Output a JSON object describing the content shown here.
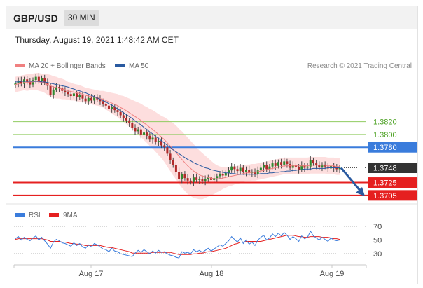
{
  "header": {
    "symbol": "GBP/USD",
    "timeframe": "30 MIN"
  },
  "datetime": "Thursday, August 19, 2021 1:48:42 AM CET",
  "chart_data": [
    {
      "type": "line",
      "chart": "price",
      "legend": [
        {
          "name": "MA 20 + Bollinger Bands",
          "color": "#f08080"
        },
        {
          "name": "MA 50",
          "color": "#2a5aa0"
        }
      ],
      "credit": "Research © 2021 Trading Central",
      "current_price": {
        "label": "1.3748",
        "value": 1.3748,
        "color": "#333333"
      },
      "levels": [
        {
          "label": "1.3820",
          "value": 1.382,
          "color": "#90cc60",
          "text_color": "#4aa020",
          "style": "thin"
        },
        {
          "label": "1.3800",
          "value": 1.38,
          "color": "#90cc60",
          "text_color": "#4aa020",
          "style": "thin"
        },
        {
          "label": "1.3780",
          "value": 1.378,
          "color": "#3a7cdc",
          "text_color": "#ffffff",
          "style": "tag"
        },
        {
          "label": "1.3725",
          "value": 1.3725,
          "color": "#e52020",
          "text_color": "#ffffff",
          "style": "tag"
        },
        {
          "label": "1.3705",
          "value": 1.3705,
          "color": "#e52020",
          "text_color": "#ffffff",
          "style": "tag"
        }
      ],
      "projection": {
        "from": 1.3748,
        "to": 1.3707,
        "color": "#2a5aa0"
      },
      "x_ticks": [
        "Aug 17",
        "Aug 18",
        "Aug 19"
      ],
      "candles_close": [
        1.388,
        1.3884,
        1.3879,
        1.3886,
        1.3882,
        1.3878,
        1.3885,
        1.389,
        1.3883,
        1.3888,
        1.3881,
        1.3876,
        1.3862,
        1.387,
        1.3874,
        1.3872,
        1.3868,
        1.3866,
        1.3863,
        1.386,
        1.3864,
        1.3858,
        1.3861,
        1.3856,
        1.3852,
        1.3857,
        1.3853,
        1.3858,
        1.3855,
        1.3852,
        1.3848,
        1.3845,
        1.384,
        1.3843,
        1.3838,
        1.3835,
        1.383,
        1.3826,
        1.3822,
        1.3818,
        1.381,
        1.3805,
        1.3808,
        1.38,
        1.3803,
        1.3798,
        1.3792,
        1.3795,
        1.3788,
        1.379,
        1.3783,
        1.378,
        1.377,
        1.376,
        1.3752,
        1.3742,
        1.373,
        1.3738,
        1.3732,
        1.3728,
        1.3726,
        1.3733,
        1.3729,
        1.3731,
        1.3727,
        1.373,
        1.3733,
        1.3729,
        1.3732,
        1.3735,
        1.3738,
        1.3736,
        1.374,
        1.3744,
        1.375,
        1.3746,
        1.3743,
        1.3748,
        1.3741,
        1.3745,
        1.374,
        1.3742,
        1.3738,
        1.3744,
        1.3748,
        1.3752,
        1.3746,
        1.375,
        1.3755,
        1.3751,
        1.3757,
        1.3753,
        1.3758,
        1.3754,
        1.3748,
        1.3752,
        1.3749,
        1.3745,
        1.3752,
        1.3748,
        1.375,
        1.376,
        1.3755,
        1.3752,
        1.3749,
        1.3753,
        1.375,
        1.3747,
        1.3751,
        1.3748,
        1.3746,
        1.3748
      ],
      "ma20": [
        1.3878,
        1.3879,
        1.388,
        1.3881,
        1.3881,
        1.3882,
        1.3882,
        1.3883,
        1.3882,
        1.3881,
        1.388,
        1.3878,
        1.3876,
        1.3874,
        1.3873,
        1.3872,
        1.3871,
        1.387,
        1.3868,
        1.3867,
        1.3866,
        1.3865,
        1.3864,
        1.3863,
        1.3861,
        1.386,
        1.3859,
        1.3858,
        1.3857,
        1.3856,
        1.3855,
        1.3853,
        1.3851,
        1.3849,
        1.3847,
        1.3845,
        1.3842,
        1.384,
        1.3837,
        1.3834,
        1.3831,
        1.3828,
        1.3825,
        1.3822,
        1.3818,
        1.3815,
        1.3811,
        1.3808,
        1.3804,
        1.38,
        1.3796,
        1.3792,
        1.3787,
        1.3782,
        1.3777,
        1.3772,
        1.3766,
        1.3761,
        1.3756,
        1.3751,
        1.3747,
        1.3743,
        1.374,
        1.3737,
        1.3735,
        1.3734,
        1.3733,
        1.3732,
        1.3731,
        1.3731,
        1.3731,
        1.3732,
        1.3733,
        1.3734,
        1.3735,
        1.3736,
        1.3737,
        1.3738,
        1.3739,
        1.374,
        1.374,
        1.3741,
        1.3741,
        1.3742,
        1.3743,
        1.3744,
        1.3745,
        1.3746,
        1.3747,
        1.3748,
        1.3749,
        1.375,
        1.3751,
        1.3751,
        1.3751,
        1.3751,
        1.3751,
        1.3751,
        1.3751,
        1.3751,
        1.3751,
        1.3752,
        1.3752,
        1.3752,
        1.3752,
        1.3752,
        1.3752,
        1.3751,
        1.3751,
        1.3751,
        1.375,
        1.375
      ],
      "ma50": [
        1.3882,
        1.3882,
        1.3883,
        1.3883,
        1.3883,
        1.3883,
        1.3883,
        1.3883,
        1.3883,
        1.3882,
        1.3882,
        1.3881,
        1.388,
        1.3879,
        1.3878,
        1.3877,
        1.3876,
        1.3875,
        1.3874,
        1.3872,
        1.3871,
        1.3869,
        1.3868,
        1.3866,
        1.3865,
        1.3863,
        1.3861,
        1.3859,
        1.3857,
        1.3855,
        1.3853,
        1.3851,
        1.3848,
        1.3846,
        1.3843,
        1.384,
        1.3837,
        1.3834,
        1.3831,
        1.3828,
        1.3825,
        1.3821,
        1.3818,
        1.3815,
        1.3811,
        1.3808,
        1.3804,
        1.3801,
        1.3797,
        1.3794,
        1.379,
        1.3787,
        1.3783,
        1.378,
        1.3776,
        1.3773,
        1.377,
        1.3767,
        1.3764,
        1.3761,
        1.3759,
        1.3756,
        1.3754,
        1.3752,
        1.375,
        1.3748,
        1.3747,
        1.3745,
        1.3744,
        1.3743,
        1.3742,
        1.3741,
        1.374,
        1.374,
        1.3739,
        1.3739,
        1.3738,
        1.3738,
        1.3738,
        1.3738,
        1.3738,
        1.3738,
        1.3738,
        1.3738,
        1.3739,
        1.3739,
        1.3739,
        1.374,
        1.374,
        1.3741,
        1.3741,
        1.3742,
        1.3742,
        1.3743,
        1.3743,
        1.3744,
        1.3744,
        1.3745,
        1.3745,
        1.3746,
        1.3746,
        1.3746,
        1.3747,
        1.3747,
        1.3747,
        1.3747,
        1.3747,
        1.3748,
        1.3748,
        1.3748,
        1.3748,
        1.3748
      ],
      "band_width": [
        0.0012,
        0.0012,
        0.0012,
        0.0012,
        0.0013,
        0.0013,
        0.0013,
        0.0013,
        0.0014,
        0.0014,
        0.0015,
        0.0016,
        0.0017,
        0.0017,
        0.0017,
        0.0016,
        0.0016,
        0.0015,
        0.0014,
        0.0014,
        0.0013,
        0.0013,
        0.0013,
        0.0012,
        0.0012,
        0.0012,
        0.0012,
        0.0012,
        0.0012,
        0.0012,
        0.0013,
        0.0014,
        0.0015,
        0.0016,
        0.0017,
        0.0018,
        0.0019,
        0.002,
        0.0021,
        0.0022,
        0.0023,
        0.0024,
        0.0025,
        0.0026,
        0.0027,
        0.0028,
        0.0029,
        0.003,
        0.0031,
        0.0032,
        0.0033,
        0.0035,
        0.0037,
        0.0039,
        0.0041,
        0.0042,
        0.0043,
        0.0044,
        0.0044,
        0.0044,
        0.0043,
        0.0042,
        0.004,
        0.0038,
        0.0036,
        0.0033,
        0.003,
        0.0027,
        0.0024,
        0.0021,
        0.0019,
        0.0017,
        0.0016,
        0.0015,
        0.0015,
        0.0014,
        0.0014,
        0.0014,
        0.0013,
        0.0013,
        0.0013,
        0.0013,
        0.0013,
        0.0013,
        0.0013,
        0.0013,
        0.0013,
        0.0013,
        0.0013,
        0.0013,
        0.0013,
        0.0013,
        0.0013,
        0.0013,
        0.0013,
        0.0013,
        0.0013,
        0.0013,
        0.0013,
        0.0013,
        0.0013,
        0.0013,
        0.0013,
        0.0013,
        0.0013,
        0.0013,
        0.0013,
        0.0013,
        0.0013,
        0.0013,
        0.0013,
        0.0013
      ]
    },
    {
      "type": "line",
      "chart": "rsi",
      "legend": [
        {
          "name": "RSI",
          "color": "#3a7cdc"
        },
        {
          "name": "9MA",
          "color": "#e52020"
        }
      ],
      "levels": [
        70,
        50,
        30
      ],
      "ylim": [
        20,
        75
      ],
      "rsi": [
        52,
        55,
        50,
        54,
        51,
        49,
        53,
        56,
        50,
        54,
        49,
        44,
        38,
        47,
        51,
        49,
        46,
        45,
        43,
        41,
        46,
        42,
        45,
        40,
        38,
        43,
        40,
        45,
        43,
        40,
        37,
        36,
        33,
        38,
        34,
        33,
        30,
        29,
        28,
        27,
        26,
        31,
        35,
        32,
        36,
        33,
        30,
        34,
        31,
        35,
        32,
        33,
        30,
        28,
        27,
        25,
        24,
        33,
        31,
        32,
        30,
        36,
        33,
        35,
        32,
        35,
        38,
        34,
        37,
        40,
        43,
        41,
        45,
        49,
        55,
        51,
        47,
        53,
        45,
        50,
        44,
        47,
        42,
        50,
        54,
        57,
        50,
        53,
        59,
        55,
        60,
        56,
        61,
        57,
        51,
        55,
        52,
        48,
        56,
        52,
        54,
        63,
        56,
        53,
        50,
        54,
        51,
        48,
        53,
        50,
        49,
        50
      ],
      "ma9": [
        51,
        52,
        52,
        52,
        52,
        52,
        52,
        52,
        52,
        52,
        51,
        50,
        48,
        48,
        48,
        48,
        47,
        47,
        46,
        45,
        45,
        44,
        44,
        43,
        42,
        42,
        42,
        42,
        42,
        42,
        41,
        40,
        39,
        39,
        38,
        37,
        36,
        35,
        34,
        33,
        31,
        31,
        31,
        31,
        31,
        31,
        31,
        32,
        32,
        32,
        32,
        32,
        32,
        32,
        31,
        30,
        29,
        29,
        29,
        29,
        29,
        30,
        30,
        31,
        31,
        32,
        33,
        33,
        34,
        35,
        36,
        37,
        38,
        40,
        42,
        44,
        45,
        47,
        47,
        48,
        48,
        48,
        48,
        48,
        48,
        49,
        50,
        51,
        52,
        53,
        54,
        55,
        56,
        57,
        57,
        57,
        56,
        55,
        55,
        54,
        54,
        55,
        55,
        55,
        55,
        54,
        54,
        54,
        53,
        52,
        52,
        51
      ]
    }
  ]
}
